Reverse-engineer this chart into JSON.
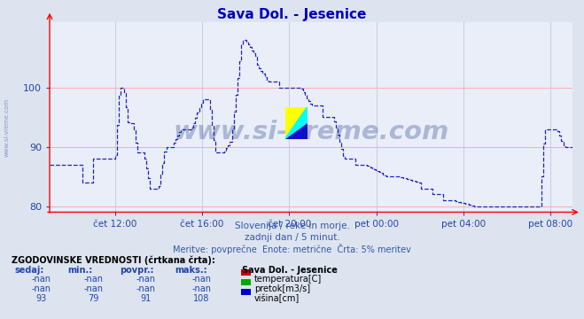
{
  "title": "Sava Dol. - Jesenice",
  "bg_color": "#dde4f0",
  "plot_bg_color": "#eaeef8",
  "line_color": "#2222bb",
  "grid_color_h": "#ffaaaa",
  "grid_color_v": "#c8ccdd",
  "tick_color": "#2244aa",
  "title_color": "#0000bb",
  "ylim": [
    79,
    111
  ],
  "yticks": [
    80,
    90,
    100
  ],
  "xtick_labels": [
    "čet 12:00",
    "čet 16:00",
    "čet 20:00",
    "pet 00:00",
    "pet 04:00",
    "pet 08:00"
  ],
  "xtick_positions": [
    3,
    7,
    11,
    15,
    19,
    23
  ],
  "xlim": [
    0,
    24
  ],
  "subtitle1": "Slovenija / reke in morje.",
  "subtitle2": "zadnji dan / 5 minut.",
  "subtitle3": "Meritve: povprečne  Enote: metrične  Črta: 5% meritev",
  "table_header": "ZGODOVINSKE VREDNOSTI (črtkana črta):",
  "col_headers": [
    "sedaj:",
    "min.:",
    "povpr.:",
    "maks.:"
  ],
  "station_label": "Sava Dol. - Jesenice",
  "row1": [
    "-nan",
    "-nan",
    "-nan",
    "-nan",
    "temperatura[C]"
  ],
  "row2": [
    "-nan",
    "-nan",
    "-nan",
    "-nan",
    "pretok[m3/s]"
  ],
  "row3": [
    "93",
    "79",
    "91",
    "108",
    "višina[cm]"
  ],
  "legend_colors": [
    "#cc0000",
    "#00aa00",
    "#0000cc"
  ],
  "watermark": "www.si-vreme.com",
  "watermark_color": "#1a3a8a",
  "watermark_alpha": 0.3,
  "side_label": "www.si-vreme.com",
  "side_label_color": "#8899bb"
}
